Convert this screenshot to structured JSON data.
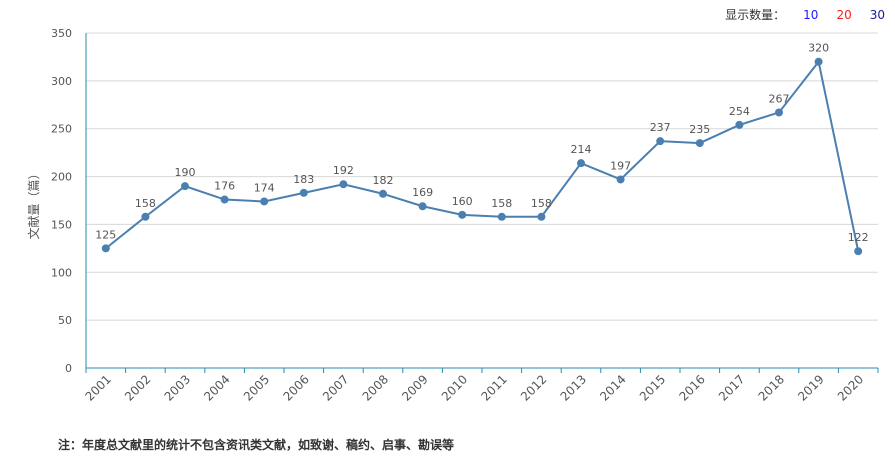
{
  "display_count": {
    "label": "显示数量：",
    "options": [
      {
        "text": "10",
        "color": "#1a1aff"
      },
      {
        "text": "20",
        "color": "#ff1a1a"
      },
      {
        "text": "30",
        "color": "#1a1a99"
      }
    ]
  },
  "footnote": "注：年度总文献里的统计不包含资讯类文献，如致谢、稿约、启事、勘误等",
  "chart_data": {
    "type": "line",
    "title": "",
    "xlabel": "",
    "ylabel": "文献量（篇）",
    "ylim": [
      0,
      350
    ],
    "yticks": [
      0,
      50,
      100,
      150,
      200,
      250,
      300,
      350
    ],
    "categories": [
      "2001",
      "2002",
      "2003",
      "2004",
      "2005",
      "2006",
      "2007",
      "2008",
      "2009",
      "2010",
      "2011",
      "2012",
      "2013",
      "2014",
      "2015",
      "2016",
      "2017",
      "2018",
      "2019",
      "2020"
    ],
    "series": [
      {
        "name": "文献量",
        "color": "#4a7fb0",
        "values": [
          125,
          158,
          190,
          176,
          174,
          183,
          192,
          182,
          169,
          160,
          158,
          158,
          214,
          197,
          237,
          235,
          254,
          267,
          320,
          122
        ]
      }
    ],
    "grid": true
  }
}
